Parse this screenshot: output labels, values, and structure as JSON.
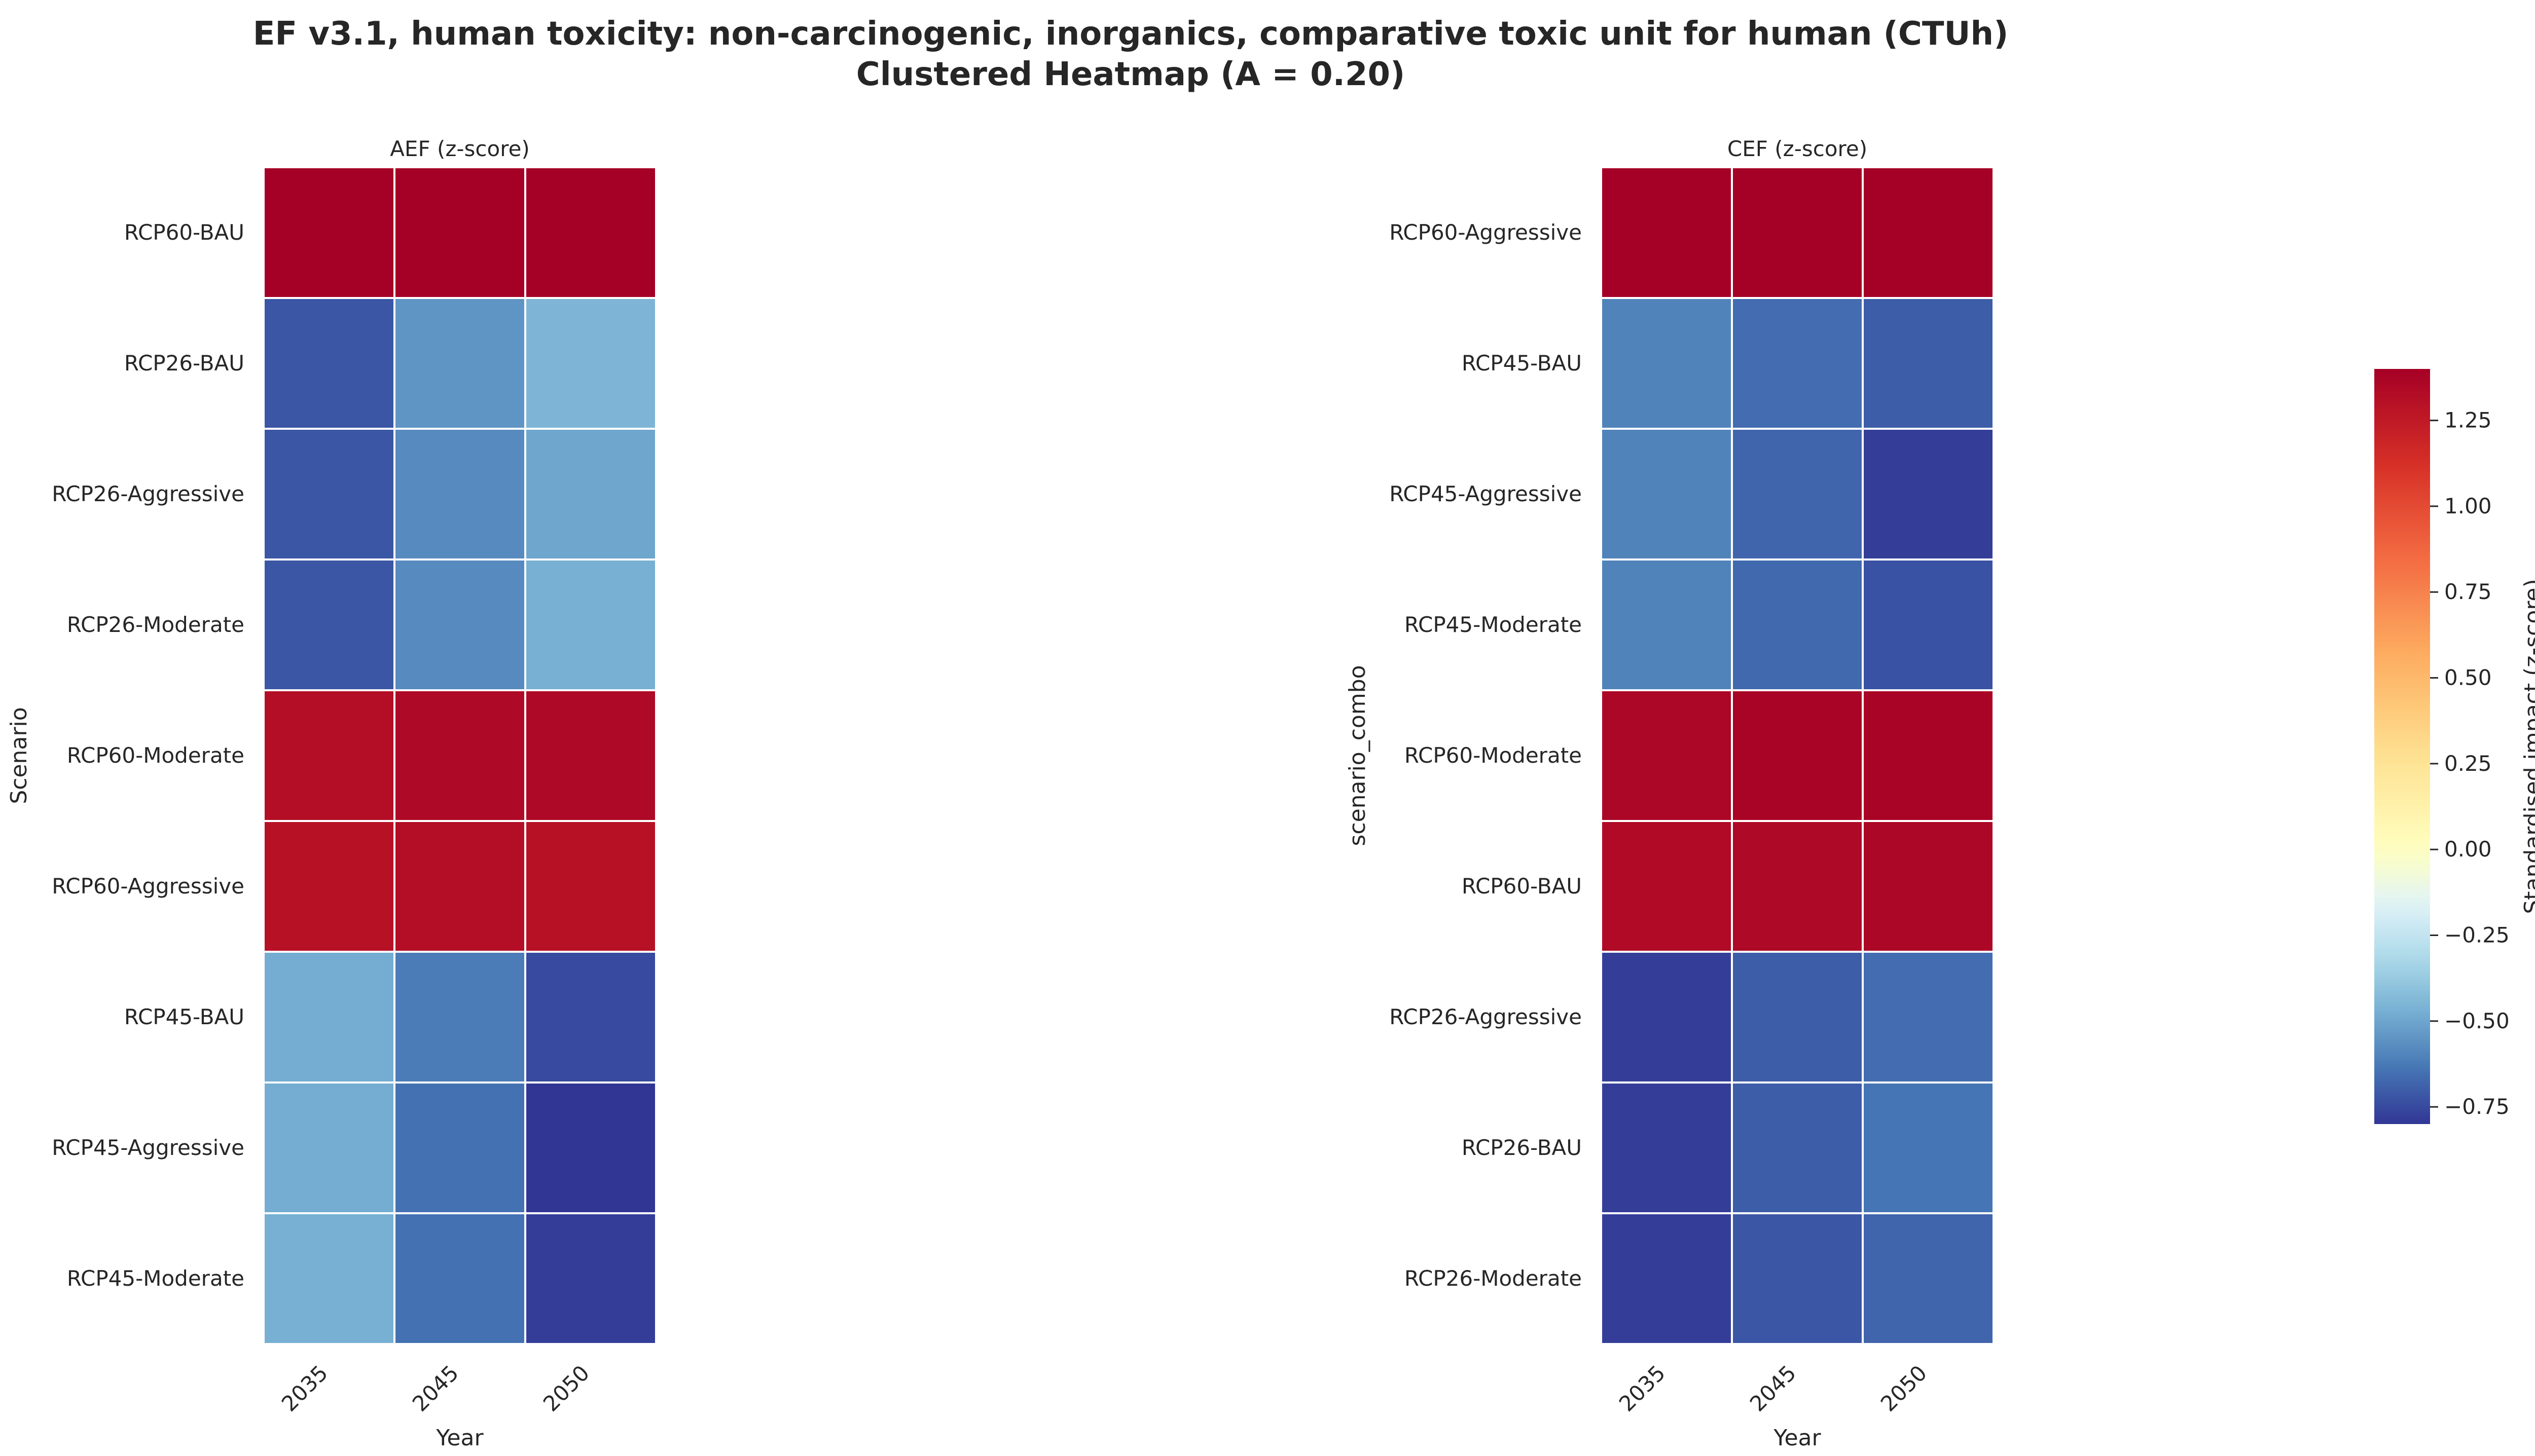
{
  "figure": {
    "title_line1": "EF v3.1, human toxicity: non-carcinogenic, inorganics, comparative toxic unit for human (CTUh)",
    "title_line2": "Clustered Heatmap (A = 0.20)"
  },
  "chart_data": [
    {
      "type": "heatmap",
      "title": "AEF (z-score)",
      "xlabel": "Year",
      "ylabel": "Scenario",
      "x": [
        "2035",
        "2045",
        "2050"
      ],
      "y": [
        "RCP60-BAU",
        "RCP26-BAU",
        "RCP26-Aggressive",
        "RCP26-Moderate",
        "RCP60-Moderate",
        "RCP60-Aggressive",
        "RCP45-BAU",
        "RCP45-Aggressive",
        "RCP45-Moderate"
      ],
      "values": [
        [
          1.4,
          1.4,
          1.4
        ],
        [
          -0.72,
          -0.55,
          -0.45
        ],
        [
          -0.72,
          -0.58,
          -0.5
        ],
        [
          -0.72,
          -0.58,
          -0.47
        ],
        [
          1.32,
          1.35,
          1.35
        ],
        [
          1.3,
          1.32,
          1.3
        ],
        [
          -0.48,
          -0.62,
          -0.75
        ],
        [
          -0.48,
          -0.65,
          -0.8
        ],
        [
          -0.47,
          -0.65,
          -0.78
        ]
      ]
    },
    {
      "type": "heatmap",
      "title": "CEF (z-score)",
      "xlabel": "Year",
      "ylabel": "scenario_combo",
      "x": [
        "2035",
        "2045",
        "2050"
      ],
      "y": [
        "RCP60-Aggressive",
        "RCP45-BAU",
        "RCP45-Aggressive",
        "RCP45-Moderate",
        "RCP60-Moderate",
        "RCP60-BAU",
        "RCP26-Aggressive",
        "RCP26-BAU",
        "RCP26-Moderate"
      ],
      "values": [
        [
          1.4,
          1.4,
          1.4
        ],
        [
          -0.6,
          -0.66,
          -0.7
        ],
        [
          -0.6,
          -0.68,
          -0.78
        ],
        [
          -0.6,
          -0.67,
          -0.73
        ],
        [
          1.36,
          1.38,
          1.38
        ],
        [
          1.34,
          1.35,
          1.36
        ],
        [
          -0.78,
          -0.7,
          -0.66
        ],
        [
          -0.78,
          -0.7,
          -0.64
        ],
        [
          -0.78,
          -0.72,
          -0.68
        ]
      ]
    }
  ],
  "colorbar": {
    "label": "Standardised impact (z-score)",
    "vmin": -0.8,
    "vmax": 1.4,
    "center": 0,
    "cmap": "RdYlBu_r",
    "ticks": [
      -0.75,
      -0.5,
      -0.25,
      0.0,
      0.25,
      0.5,
      0.75,
      1.0,
      1.25
    ],
    "tick_labels": [
      "−0.75",
      "−0.50",
      "−0.25",
      "0.00",
      "0.25",
      "0.50",
      "0.75",
      "1.00",
      "1.25"
    ]
  }
}
